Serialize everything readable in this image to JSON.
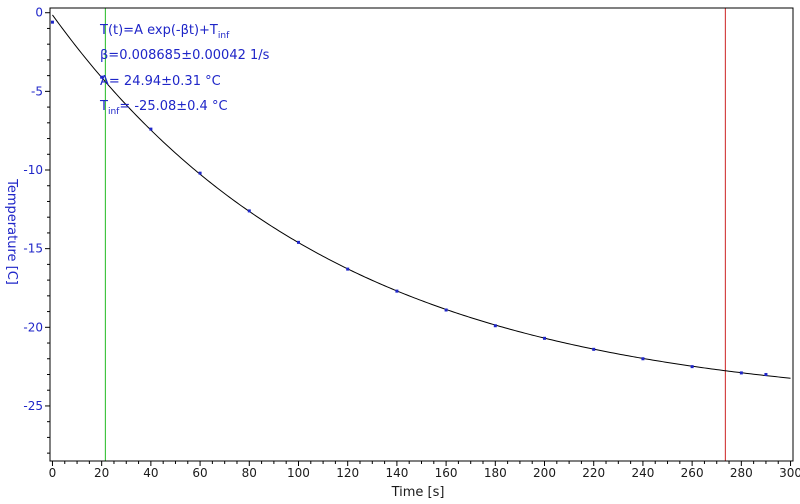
{
  "chart_data": {
    "type": "scatter",
    "title": "",
    "xlabel": "Time [s]",
    "ylabel": "Temperature [C]",
    "xlim": [
      -1,
      301
    ],
    "ylim": [
      -28.5,
      0.3
    ],
    "x_ticks": [
      0,
      20,
      40,
      60,
      80,
      100,
      120,
      140,
      160,
      180,
      200,
      220,
      240,
      260,
      280,
      300
    ],
    "y_ticks": [
      0,
      -5,
      -10,
      -15,
      -20,
      -25
    ],
    "grid": false,
    "annotation": {
      "line1": "T(t)=A exp(-βt)+T",
      "line1_sub": "inf",
      "line2": "β=0.008685±0.00042 1/s",
      "line3": "A= 24.94±0.31 °C",
      "line4_main": "T",
      "line4_sub": "inf",
      "line4_rest": "= -25.08±0.4 °C"
    },
    "fit": {
      "A": 24.94,
      "beta": 0.008685,
      "T_inf": -25.08,
      "x_start": 0,
      "x_end": 300
    },
    "series": [
      {
        "x": [
          0,
          20,
          40,
          60,
          80,
          100,
          120,
          140,
          160,
          180,
          200,
          220,
          240,
          260,
          280,
          290
        ],
        "y": [
          -0.6,
          -4.1,
          -7.4,
          -10.2,
          -12.6,
          -14.6,
          -16.3,
          -17.7,
          -18.9,
          -19.9,
          -20.7,
          -21.4,
          -22.0,
          -22.5,
          -22.9,
          -23.0
        ]
      }
    ],
    "vertical_lines": [
      {
        "x": 21.5,
        "color": "#22bb22"
      },
      {
        "x": 273.5,
        "color": "#cc2222"
      }
    ],
    "colors": {
      "data": "#1f26c8",
      "fit": "#000000",
      "frame": "#000000"
    }
  }
}
